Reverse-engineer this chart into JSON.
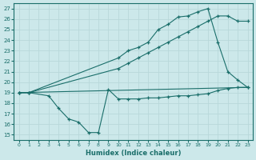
{
  "xlabel": "Humidex (Indice chaleur)",
  "xlim": [
    -0.5,
    23.5
  ],
  "ylim": [
    14.5,
    27.5
  ],
  "xticks": [
    0,
    1,
    2,
    3,
    4,
    5,
    6,
    7,
    8,
    9,
    10,
    11,
    12,
    13,
    14,
    15,
    16,
    17,
    18,
    19,
    20,
    21,
    22,
    23
  ],
  "yticks": [
    15,
    16,
    17,
    18,
    19,
    20,
    21,
    22,
    23,
    24,
    25,
    26,
    27
  ],
  "bg_color": "#cce8ea",
  "line_color": "#1a6e6a",
  "grid_color": "#b8d8da",
  "line1_x": [
    0,
    1,
    3,
    4,
    5,
    6,
    7,
    8,
    9,
    10,
    11,
    12,
    13,
    14,
    15,
    16,
    17,
    18,
    19,
    20,
    21,
    22,
    23
  ],
  "line1_y": [
    19,
    19,
    18.7,
    17.5,
    16.5,
    16.2,
    15.2,
    15.2,
    19.3,
    18.4,
    18.4,
    18.4,
    18.5,
    18.5,
    18.6,
    18.7,
    18.7,
    18.8,
    18.9,
    19.2,
    19.4,
    19.5,
    19.5
  ],
  "line2_x": [
    0,
    23
  ],
  "line2_y": [
    19.0,
    19.5
  ],
  "line3_x": [
    0,
    1,
    10,
    11,
    12,
    13,
    14,
    15,
    16,
    17,
    18,
    19,
    20,
    21,
    22,
    23
  ],
  "line3_y": [
    19.0,
    19.0,
    22.3,
    23.0,
    23.3,
    23.8,
    25.0,
    25.5,
    26.2,
    26.3,
    26.7,
    27.0,
    23.8,
    21.0,
    20.2,
    19.5
  ],
  "line4_x": [
    0,
    1,
    10,
    11,
    12,
    13,
    14,
    15,
    16,
    17,
    18,
    19,
    20,
    21,
    22,
    23
  ],
  "line4_y": [
    19.0,
    19.0,
    21.3,
    21.8,
    22.3,
    22.8,
    23.3,
    23.8,
    24.3,
    24.8,
    25.3,
    25.8,
    26.3,
    26.3,
    25.8,
    25.8
  ]
}
